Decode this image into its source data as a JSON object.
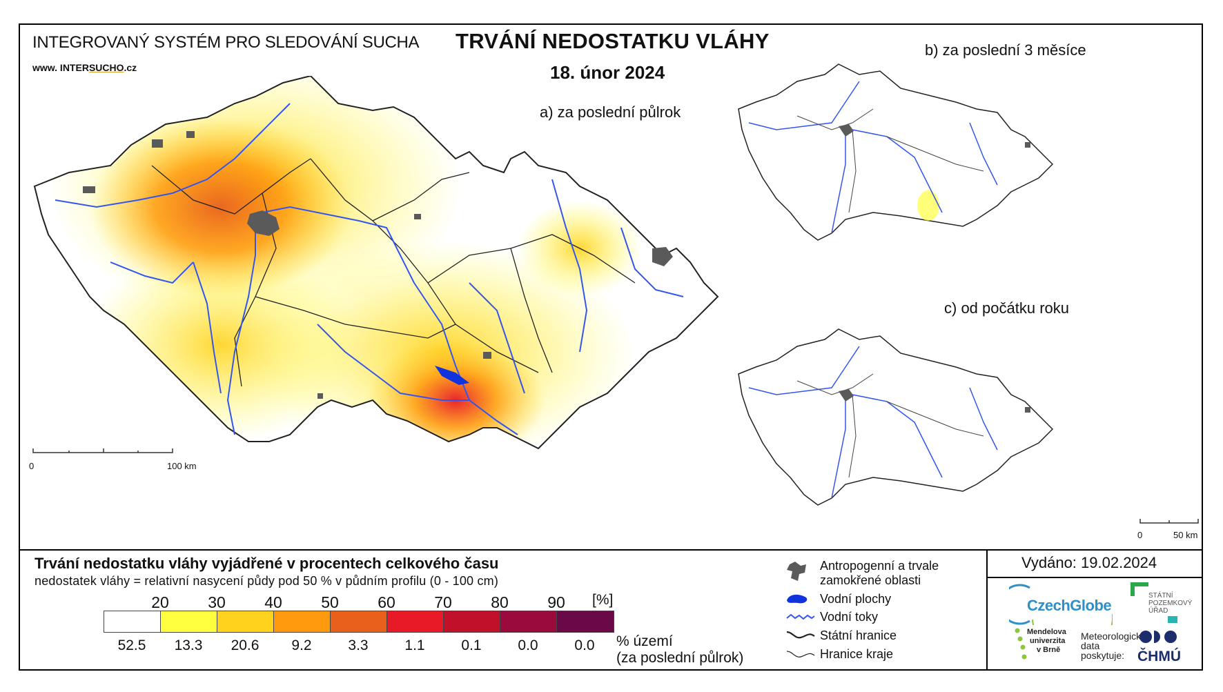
{
  "header": {
    "system_title": "INTEGROVANÝ SYSTÉM PRO SLEDOVÁNÍ SUCHA",
    "website_prefix": "www. INTER",
    "website_brand": "SUCHO",
    "website_suffix": ".cz",
    "main_title": "TRVÁNÍ NEDOSTATKU VLÁHY",
    "date": "18. únor 2024"
  },
  "maps": {
    "a_label": "a) za poslední půlrok",
    "b_label": "b) za poslední 3 měsíce",
    "c_label": "c) od počátku roku",
    "scale_main_zero": "0",
    "scale_main_max": "100 km",
    "scale_small_zero": "0",
    "scale_small_max": "50 km"
  },
  "legend": {
    "title": "Trvání nedostatku vláhy vyjádřené v procentech celkového času",
    "subtitle": "nedostatek vláhy = relativní nasycení půdy pod 50 % v půdním profilu (0 - 100 cm)",
    "ticks": [
      "20",
      "30",
      "40",
      "50",
      "60",
      "70",
      "80",
      "90"
    ],
    "units": "[%]",
    "bin_colors": [
      "#ffffff",
      "#ffff40",
      "#ffd21e",
      "#ff9a0e",
      "#e8601c",
      "#e81a28",
      "#c0102a",
      "#9a0a3c",
      "#6a0848"
    ],
    "area_percent": [
      "52.5",
      "13.3",
      "20.6",
      "9.2",
      "3.3",
      "1.1",
      "0.1",
      "0.0",
      "0.0"
    ],
    "area_label_1": "% území",
    "area_label_2": "(za poslední půlrok)"
  },
  "symbols": {
    "anthropogenic_1": "Antropogenní a trvale",
    "anthropogenic_2": "zamokřené oblasti",
    "water_bodies": "Vodní plochy",
    "rivers": "Vodní toky",
    "state_border": "Státní hranice",
    "region_border": "Hranice kraje",
    "colors": {
      "anthropogenic": "#5a5a5a",
      "water": "#1133dd",
      "rivers": "#3355ee",
      "border": "#222222"
    }
  },
  "issuer": {
    "issued": "Vydáno: 19.02.2024",
    "czechglobe": "CzechGlobe",
    "spu_1": "STÁTNÍ",
    "spu_2": "POZEMKOVÝ",
    "spu_3": "ÚŘAD",
    "mendel_1": "Mendelova",
    "mendel_2": "univerzita",
    "mendel_3": "v Brně",
    "meteo_1": "Meteorologická",
    "meteo_2": "data",
    "meteo_3": "poskytuje:",
    "chmu": "ČHMÚ"
  }
}
